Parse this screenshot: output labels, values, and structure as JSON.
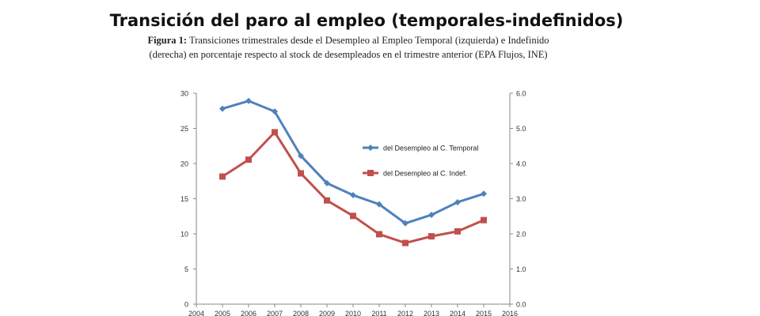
{
  "header": {
    "title": "Transición del paro al empleo (temporales-indefinidos)",
    "caption_label": "Figura 1:",
    "caption_text": "Transiciones trimestrales desde el Desempleo al Empleo Temporal (izquierda) e Indefinido (derecha) en porcentaje respecto al stock de desempleados en el trimestre anterior (EPA Flujos, INE)"
  },
  "chart_data": {
    "type": "line",
    "title": "",
    "x": [
      2004,
      2005,
      2006,
      2007,
      2008,
      2009,
      2010,
      2011,
      2012,
      2013,
      2014,
      2015,
      2016
    ],
    "xlim": [
      2004,
      2016
    ],
    "x_tick_labels": [
      "2004",
      "2005",
      "2006",
      "2007",
      "2008",
      "2009",
      "2010",
      "2011",
      "2012",
      "2013",
      "2014",
      "2015",
      "2016"
    ],
    "y_left": {
      "lim": [
        0,
        30
      ],
      "tick_labels": [
        "0",
        "5",
        "10",
        "15",
        "20",
        "25",
        "30"
      ]
    },
    "y_right": {
      "lim": [
        0,
        6
      ],
      "tick_labels": [
        "0.0",
        "1.0",
        "2.0",
        "3.0",
        "4.0",
        "5.0",
        "6.0"
      ]
    },
    "grid": false,
    "legend_position": "right",
    "series": [
      {
        "name": "del Desempleo al C. Temporal",
        "axis": "left",
        "marker": "diamond",
        "color": "#4f81bd",
        "x": [
          2005,
          2006,
          2007,
          2008,
          2009,
          2010,
          2011,
          2012,
          2013,
          2014,
          2015
        ],
        "values": [
          27.8,
          28.9,
          27.4,
          21.1,
          17.2,
          15.5,
          14.2,
          11.5,
          12.7,
          14.5,
          15.7
        ]
      },
      {
        "name": "del Desempleo al C. Indef.",
        "axis": "right",
        "marker": "square",
        "color": "#c0504d",
        "x": [
          2005,
          2006,
          2007,
          2008,
          2009,
          2010,
          2011,
          2012,
          2013,
          2014,
          2015
        ],
        "values": [
          3.63,
          4.11,
          4.89,
          3.72,
          2.95,
          2.51,
          1.99,
          1.74,
          1.93,
          2.07,
          2.39
        ]
      }
    ]
  }
}
